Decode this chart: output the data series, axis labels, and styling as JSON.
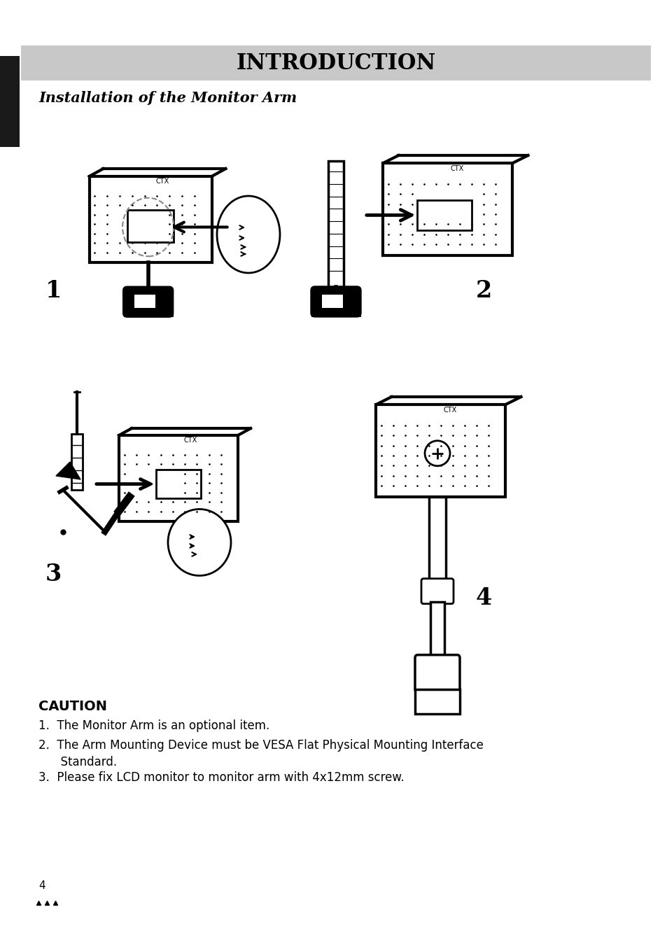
{
  "title": "INTRODUCTION",
  "subtitle": "Installation of the Monitor Arm",
  "bg_color": "#ffffff",
  "header_bg": "#c8c8c8",
  "header_text_color": "#000000",
  "left_tab_color": "#1a1a1a",
  "caution_title": "CAUTION",
  "caution_items": [
    "1.  The Monitor Arm is an optional item.",
    "2.  The Arm Mounting Device must be VESA Flat Physical Mounting Interface\n      Standard.",
    "3.  Please fix LCD monitor to monitor arm with 4x12mm screw."
  ],
  "page_number": "4",
  "step_labels": [
    "1",
    "2",
    "3",
    "4"
  ]
}
